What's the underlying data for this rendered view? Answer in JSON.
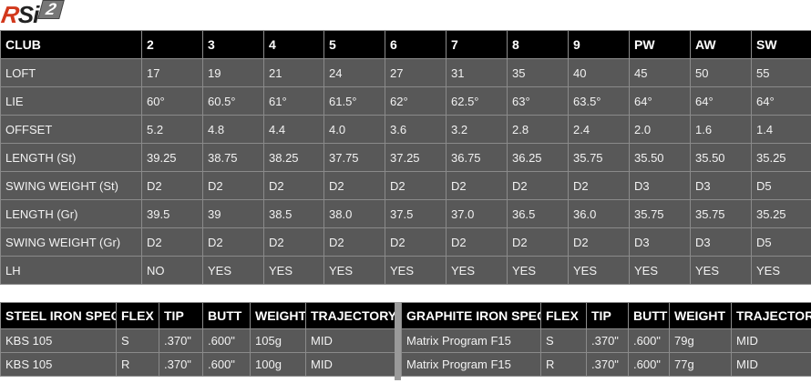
{
  "logo": {
    "text": "RSi",
    "superscript": "2"
  },
  "main_table": {
    "headers": [
      "CLUB",
      "2",
      "3",
      "4",
      "5",
      "6",
      "7",
      "8",
      "9",
      "PW",
      "AW",
      "SW"
    ],
    "rows": [
      [
        "LOFT",
        "17",
        "19",
        "21",
        "24",
        "27",
        "31",
        "35",
        "40",
        "45",
        "50",
        "55"
      ],
      [
        "LIE",
        "60°",
        "60.5°",
        "61°",
        "61.5°",
        "62°",
        "62.5°",
        "63°",
        "63.5°",
        "64°",
        "64°",
        "64°"
      ],
      [
        "OFFSET",
        "5.2",
        "4.8",
        "4.4",
        "4.0",
        "3.6",
        "3.2",
        "2.8",
        "2.4",
        "2.0",
        "1.6",
        "1.4"
      ],
      [
        "LENGTH (St)",
        "39.25",
        "38.75",
        "38.25",
        "37.75",
        "37.25",
        "36.75",
        "36.25",
        "35.75",
        "35.50",
        "35.50",
        "35.25"
      ],
      [
        "SWING WEIGHT (St)",
        "D2",
        "D2",
        "D2",
        "D2",
        "D2",
        "D2",
        "D2",
        "D2",
        "D3",
        "D3",
        "D5"
      ],
      [
        "LENGTH (Gr)",
        "39.5",
        "39",
        "38.5",
        "38.0",
        "37.5",
        "37.0",
        "36.5",
        "36.0",
        "35.75",
        "35.75",
        "35.25"
      ],
      [
        "SWING WEIGHT (Gr)",
        "D2",
        "D2",
        "D2",
        "D2",
        "D2",
        "D2",
        "D2",
        "D2",
        "D3",
        "D3",
        "D5"
      ],
      [
        "LH",
        "NO",
        "YES",
        "YES",
        "YES",
        "YES",
        "YES",
        "YES",
        "YES",
        "YES",
        "YES",
        "YES"
      ]
    ]
  },
  "steel_table": {
    "headers": [
      "STEEL IRON SPECS",
      "FLEX",
      "TIP",
      "BUTT",
      "WEIGHT",
      "TRAJECTORY"
    ],
    "rows": [
      [
        "KBS 105",
        "S",
        ".370\"",
        ".600\"",
        "105g",
        "MID"
      ],
      [
        "KBS 105",
        "R",
        ".370\"",
        ".600\"",
        "100g",
        "MID"
      ]
    ]
  },
  "graphite_table": {
    "headers": [
      "GRAPHITE IRON SPECS",
      "FLEX",
      "TIP",
      "BUTT",
      "WEIGHT",
      "TRAJECTORY"
    ],
    "rows": [
      [
        "Matrix Program F15",
        "S",
        ".370\"",
        ".600\"",
        "79g",
        "MID"
      ],
      [
        "Matrix Program F15",
        "R",
        ".370\"",
        ".600\"",
        "77g",
        "MID"
      ]
    ]
  },
  "colors": {
    "header_bg": "#000000",
    "cell_bg": "#585858",
    "logo_red": "#d2381c"
  }
}
